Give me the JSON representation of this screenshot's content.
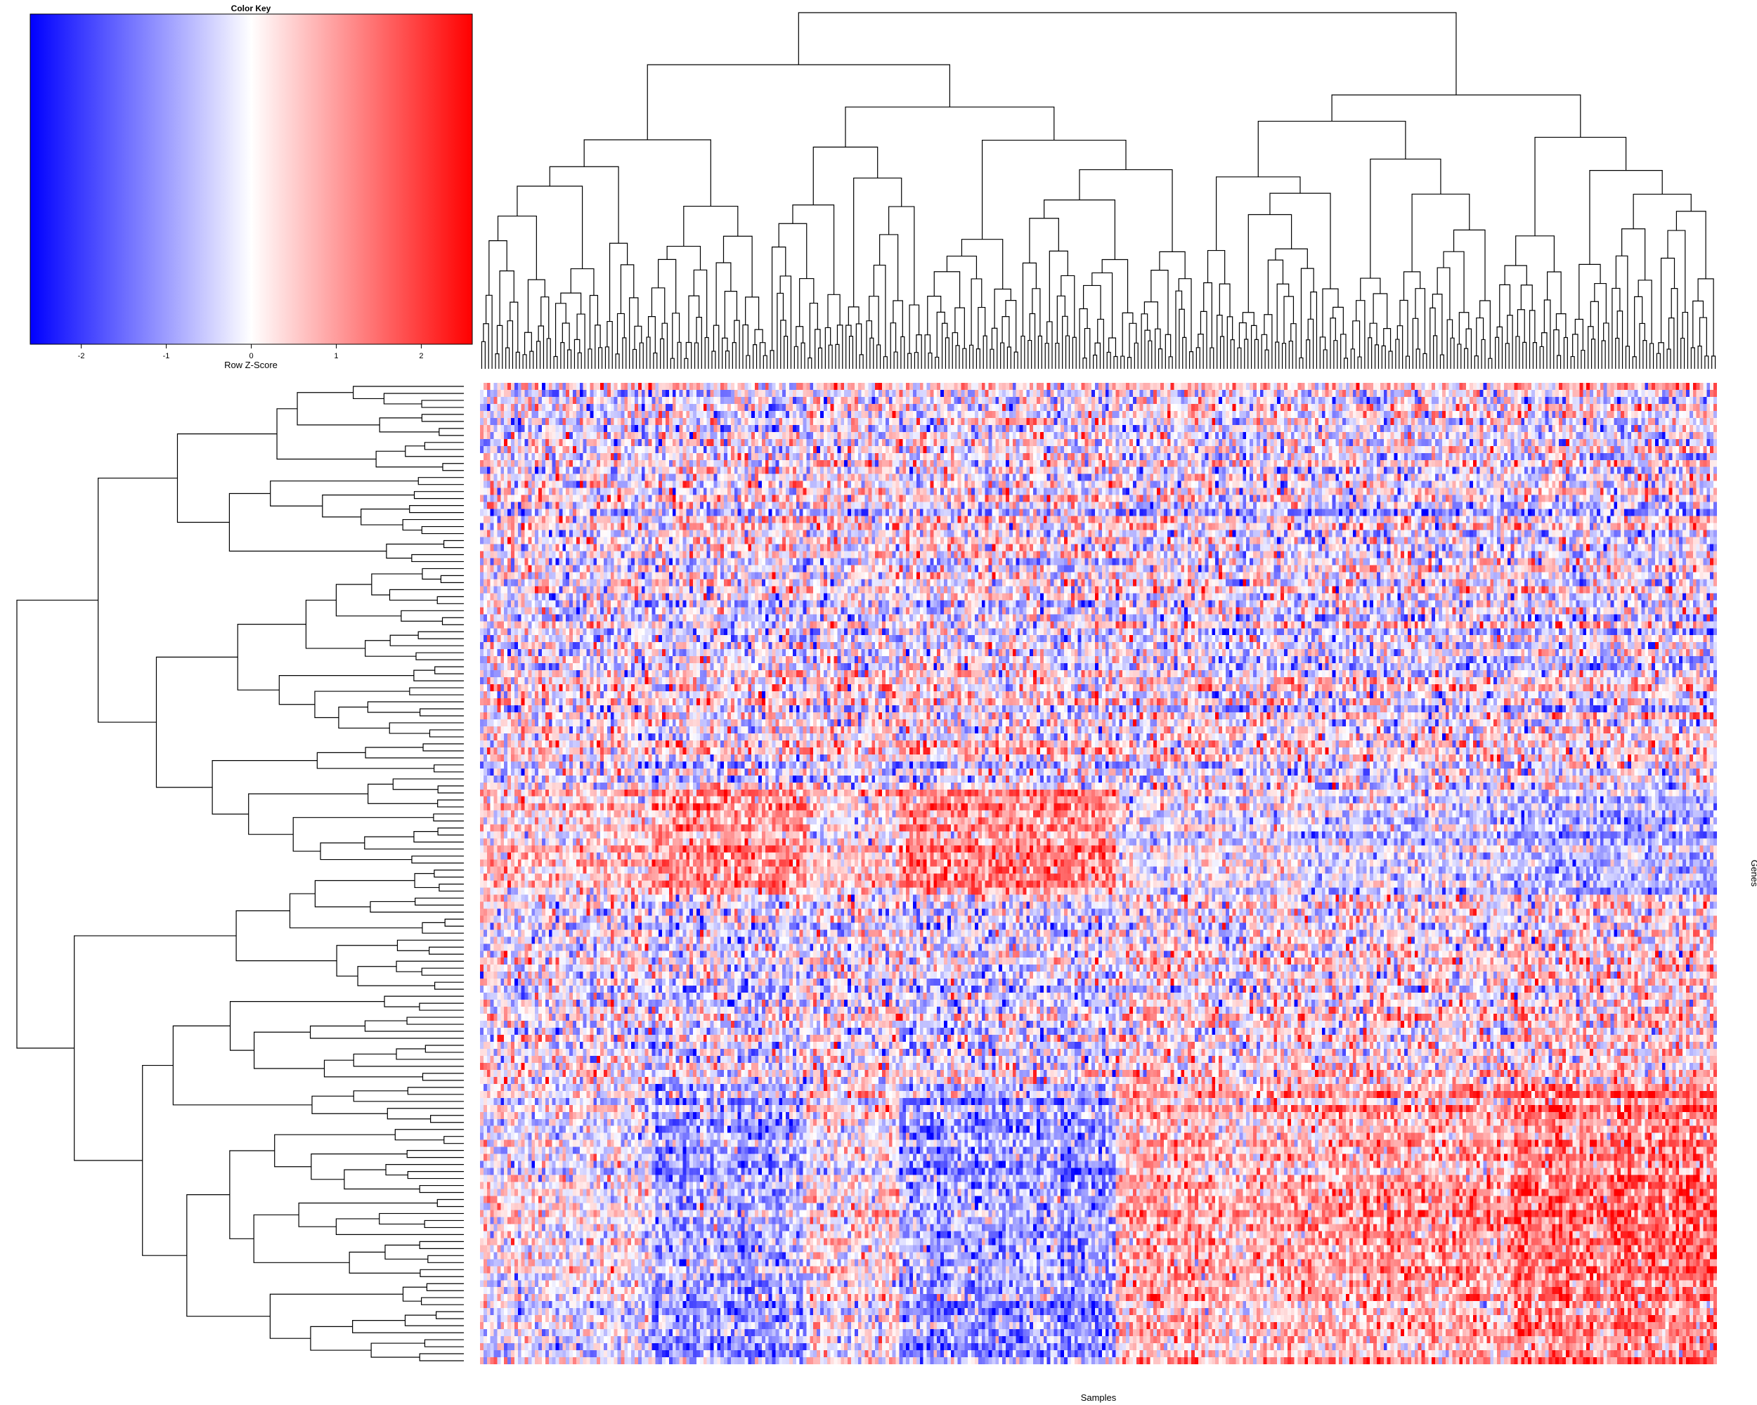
{
  "chart_data": {
    "type": "heatmap",
    "title": "",
    "xlabel": "Samples",
    "ylabel": "Genes",
    "colorscale": {
      "low": "#0000ff",
      "mid": "#ffffff",
      "high": "#ff0000"
    },
    "color_key": {
      "title": "Color Key",
      "xlabel": "Row Z-Score",
      "range": [
        -2.6,
        2.6
      ],
      "ticks": [
        -2,
        -1,
        0,
        1,
        2
      ],
      "tick_labels": [
        "-2",
        "-1",
        "0",
        "1",
        "2"
      ]
    },
    "n_rows": 140,
    "n_cols": 360,
    "col_blocks": [
      {
        "from": 0,
        "to": 50,
        "z": -0.05
      },
      {
        "from": 50,
        "to": 95,
        "z": -0.55
      },
      {
        "from": 95,
        "to": 122,
        "z": 0.05
      },
      {
        "from": 122,
        "to": 185,
        "z": -0.6
      },
      {
        "from": 185,
        "to": 240,
        "z": 0.4
      },
      {
        "from": 240,
        "to": 300,
        "z": 0.55
      },
      {
        "from": 300,
        "to": 360,
        "z": 0.85
      }
    ],
    "row_bands": [
      {
        "from": 0,
        "to": 58,
        "z": 0.0
      },
      {
        "from": 58,
        "to": 73,
        "z": 0.35
      },
      {
        "from": 73,
        "to": 100,
        "z": -0.1
      },
      {
        "from": 100,
        "to": 140,
        "z": -0.2
      }
    ],
    "row_dendrogram": "hierarchical clustering of genes",
    "col_dendrogram": "hierarchical clustering of samples"
  }
}
